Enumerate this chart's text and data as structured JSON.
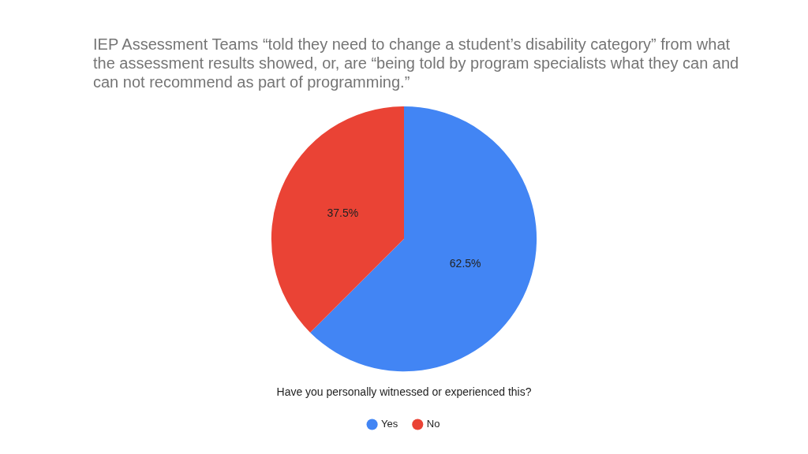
{
  "chart_data": {
    "type": "pie",
    "title": "IEP Assessment Teams “told they need to change a student’s disability category” from what the assessment results showed, or, are “being told by program specialists what they can and can not recommend as part of programming.”",
    "legend_title": "Have you personally witnessed or experienced this?",
    "categories": [
      "Yes",
      "No"
    ],
    "values": [
      62.5,
      37.5
    ],
    "colors": [
      "#4285f4",
      "#ea4335"
    ],
    "value_labels": [
      "62.5%",
      "37.5%"
    ],
    "legend": "bottom"
  }
}
